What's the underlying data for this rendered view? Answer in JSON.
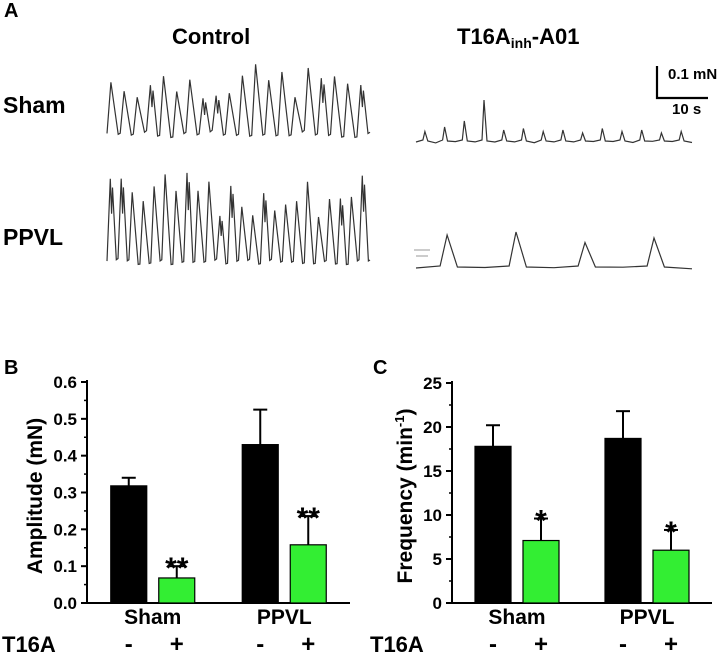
{
  "panel_a": {
    "letter": "A",
    "control_title": "Control",
    "t16a_title_main": "T16A",
    "t16a_title_sub": "inh",
    "t16a_title_suffix": "-A01",
    "row_sham": "Sham",
    "row_ppvl": "PPVL",
    "scale_force": "0.1 mN",
    "scale_time": "10 s",
    "traces": [
      {
        "name": "sham-control",
        "kind": "dense",
        "cycles": 20,
        "amplitude": 0.22,
        "baseline": 0.02
      },
      {
        "name": "sham-t16a",
        "kind": "sparse",
        "peaks": [
          0.035,
          0.05,
          0.07,
          0.055,
          0.04,
          0.045,
          0.035,
          0.04,
          0.03,
          0.045,
          0.035,
          0.04,
          0.03,
          0.035
        ],
        "big_peak": 0.14
      },
      {
        "name": "ppvl-control",
        "kind": "dense",
        "cycles": 24,
        "amplitude": 0.27,
        "baseline": 0.015
      },
      {
        "name": "ppvl-t16a",
        "kind": "sparse",
        "peaks": [
          0.11,
          0.12,
          0.085,
          0.1
        ],
        "big_peak": 0.11
      }
    ]
  },
  "panel_b_letter": "B",
  "panel_c_letter": "C",
  "treatment_row": {
    "label": "T16A",
    "minus": "-",
    "plus": "+"
  },
  "colors": {
    "control": "#000000",
    "t16a": "#33ee33",
    "trace": "#333333"
  },
  "chart_data": [
    {
      "type": "bar",
      "panel": "B",
      "title": "",
      "xlabel": "",
      "ylabel": "Amplitude (mN)",
      "categories": [
        "Sham",
        "PPVL"
      ],
      "series": [
        {
          "name": "T16A -",
          "values": [
            0.318,
            0.43
          ],
          "errors": [
            0.022,
            0.095
          ]
        },
        {
          "name": "T16A +",
          "values": [
            0.068,
            0.158
          ],
          "errors": [
            0.032,
            0.078
          ]
        }
      ],
      "significance": [
        "**",
        "**"
      ],
      "ylim": [
        0,
        0.6
      ],
      "yticks": [
        0.0,
        0.1,
        0.2,
        0.3,
        0.4,
        0.5,
        0.6
      ],
      "ytick_labels": [
        "0.0",
        "0.1",
        "0.2",
        "0.3",
        "0.4",
        "0.5",
        "0.6"
      ]
    },
    {
      "type": "bar",
      "panel": "C",
      "title": "",
      "xlabel": "",
      "ylabel": "Frequency (min",
      "ylabel_sup": "-1",
      "ylabel_close": ")",
      "categories": [
        "Sham",
        "PPVL"
      ],
      "series": [
        {
          "name": "T16A -",
          "values": [
            17.8,
            18.7
          ],
          "errors": [
            2.4,
            3.1
          ]
        },
        {
          "name": "T16A +",
          "values": [
            7.1,
            6.0
          ],
          "errors": [
            2.5,
            2.3
          ]
        }
      ],
      "significance": [
        "*",
        "*"
      ],
      "ylim": [
        0,
        25
      ],
      "yticks": [
        0,
        5,
        10,
        15,
        20,
        25
      ],
      "ytick_labels": [
        "0",
        "5",
        "10",
        "15",
        "20",
        "25"
      ]
    }
  ]
}
